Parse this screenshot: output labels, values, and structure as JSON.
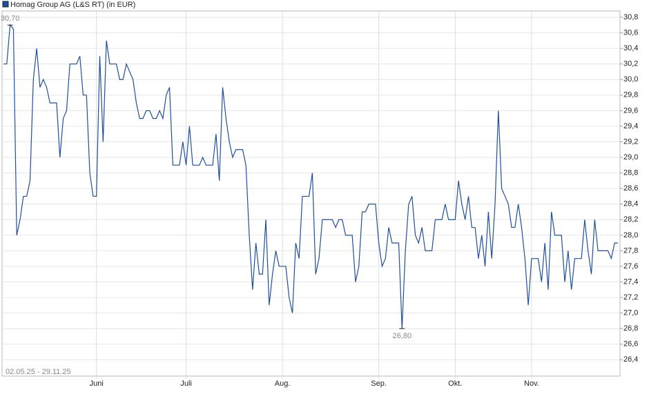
{
  "chart_data": {
    "type": "line",
    "subtitle": "02.05.25 - 29.11.25",
    "series": [
      {
        "name": "Homag Group AG (L&S RT) (in EUR)",
        "color": "#1d4f9b",
        "values": [
          30.2,
          30.2,
          30.7,
          30.65,
          28.0,
          28.2,
          28.5,
          28.5,
          28.7,
          30.0,
          30.4,
          29.9,
          30.0,
          29.9,
          29.7,
          29.7,
          29.7,
          29.0,
          29.5,
          29.6,
          30.2,
          30.2,
          30.2,
          30.3,
          29.8,
          29.8,
          28.8,
          28.5,
          28.5,
          30.3,
          29.2,
          30.5,
          30.2,
          30.2,
          30.2,
          30.0,
          30.0,
          30.2,
          30.1,
          30.0,
          29.7,
          29.5,
          29.5,
          29.6,
          29.6,
          29.5,
          29.5,
          29.6,
          29.5,
          29.8,
          29.9,
          28.9,
          28.9,
          28.9,
          29.2,
          28.9,
          29.4,
          28.9,
          28.9,
          28.9,
          29.0,
          28.9,
          28.9,
          28.9,
          29.3,
          28.7,
          29.9,
          29.5,
          29.2,
          29.0,
          29.1,
          29.1,
          29.1,
          28.9,
          28.0,
          27.3,
          27.9,
          27.5,
          27.5,
          28.2,
          27.1,
          27.5,
          27.8,
          27.6,
          27.6,
          27.6,
          27.2,
          27.0,
          27.9,
          27.7,
          28.5,
          28.5,
          28.5,
          28.8,
          27.5,
          27.7,
          28.2,
          28.2,
          28.2,
          28.2,
          28.1,
          28.2,
          28.2,
          28.0,
          28.0,
          28.0,
          27.4,
          27.6,
          28.3,
          28.3,
          28.4,
          28.4,
          28.4,
          27.9,
          27.6,
          27.7,
          28.1,
          27.9,
          27.9,
          27.9,
          26.8,
          27.8,
          28.4,
          28.5,
          28.0,
          27.9,
          28.1,
          27.8,
          27.8,
          27.8,
          28.2,
          28.2,
          28.2,
          28.4,
          28.2,
          28.2,
          28.2,
          28.7,
          28.4,
          28.2,
          28.5,
          28.1,
          28.1,
          27.7,
          28.0,
          27.6,
          28.3,
          27.7,
          28.4,
          29.6,
          28.6,
          28.5,
          28.4,
          28.1,
          28.1,
          28.4,
          28.1,
          27.7,
          27.1,
          27.7,
          27.7,
          27.7,
          27.4,
          27.9,
          27.3,
          28.3,
          28.0,
          28.0,
          28.0,
          27.4,
          27.8,
          27.3,
          27.7,
          27.7,
          27.7,
          28.2,
          27.8,
          27.5,
          28.2,
          27.8,
          27.8,
          27.8,
          27.8,
          27.7,
          27.9,
          27.9
        ]
      }
    ],
    "categories": [
      null,
      null,
      null,
      null,
      null,
      null,
      null,
      null,
      null,
      null,
      null,
      null,
      null,
      null,
      null,
      null,
      null,
      null,
      null,
      null,
      null,
      null,
      null,
      null,
      null,
      null,
      null,
      null,
      "Juni",
      null,
      null,
      null,
      null,
      null,
      null,
      null,
      null,
      null,
      null,
      null,
      null,
      null,
      null,
      null,
      null,
      null,
      null,
      null,
      null,
      null,
      null,
      null,
      null,
      null,
      null,
      "Juli",
      null,
      null,
      null,
      null,
      null,
      null,
      null,
      null,
      null,
      null,
      null,
      null,
      null,
      null,
      null,
      null,
      null,
      null,
      null,
      null,
      null,
      null,
      null,
      null,
      null,
      null,
      null,
      null,
      "Aug.",
      null,
      null,
      null,
      null,
      null,
      null,
      null,
      null,
      null,
      null,
      null,
      null,
      null,
      null,
      null,
      null,
      null,
      null,
      null,
      null,
      null,
      null,
      null,
      null,
      null,
      null,
      null,
      null,
      "Sep.",
      null,
      null,
      null,
      null,
      null,
      null,
      null,
      null,
      null,
      null,
      null,
      null,
      null,
      null,
      null,
      null,
      null,
      null,
      null,
      null,
      null,
      null,
      "Okt.",
      null,
      null,
      null,
      null,
      null,
      null,
      null,
      null,
      null,
      null,
      null,
      null,
      null,
      null,
      null,
      null,
      null,
      null,
      null,
      null,
      null,
      null,
      "Nov.",
      null,
      null,
      null,
      null,
      null,
      null,
      null,
      null,
      null,
      null,
      null,
      null,
      null,
      null,
      null,
      null,
      null,
      null,
      null,
      null,
      null,
      null,
      null,
      null,
      null,
      null
    ],
    "annotations": [
      {
        "text": "30,70",
        "value": 30.7
      },
      {
        "text": "26,80",
        "value": 26.8
      }
    ],
    "ylim": [
      26.19,
      30.88
    ],
    "yticks": [
      {
        "value": 26.4,
        "label": "26,4"
      },
      {
        "value": 26.6,
        "label": "26,6"
      },
      {
        "value": 26.8,
        "label": "26,8"
      },
      {
        "value": 27.0,
        "label": "27,0"
      },
      {
        "value": 27.2,
        "label": "27,2"
      },
      {
        "value": 27.4,
        "label": "27,4"
      },
      {
        "value": 27.6,
        "label": "27,6"
      },
      {
        "value": 27.8,
        "label": "27,8"
      },
      {
        "value": 28.0,
        "label": "28,0"
      },
      {
        "value": 28.2,
        "label": "28,2"
      },
      {
        "value": 28.4,
        "label": "28,4"
      },
      {
        "value": 28.6,
        "label": "28,6"
      },
      {
        "value": 28.8,
        "label": "28,8"
      },
      {
        "value": 29.0,
        "label": "29,0"
      },
      {
        "value": 29.2,
        "label": "29,2"
      },
      {
        "value": 29.4,
        "label": "29,4"
      },
      {
        "value": 29.6,
        "label": "29,6"
      },
      {
        "value": 29.8,
        "label": "29,8"
      },
      {
        "value": 30.0,
        "label": "30,0"
      },
      {
        "value": 30.2,
        "label": "30,2"
      },
      {
        "value": 30.4,
        "label": "30,4"
      },
      {
        "value": 30.6,
        "label": "30,6"
      },
      {
        "value": 30.8,
        "label": "30,8"
      }
    ],
    "grid": true
  }
}
